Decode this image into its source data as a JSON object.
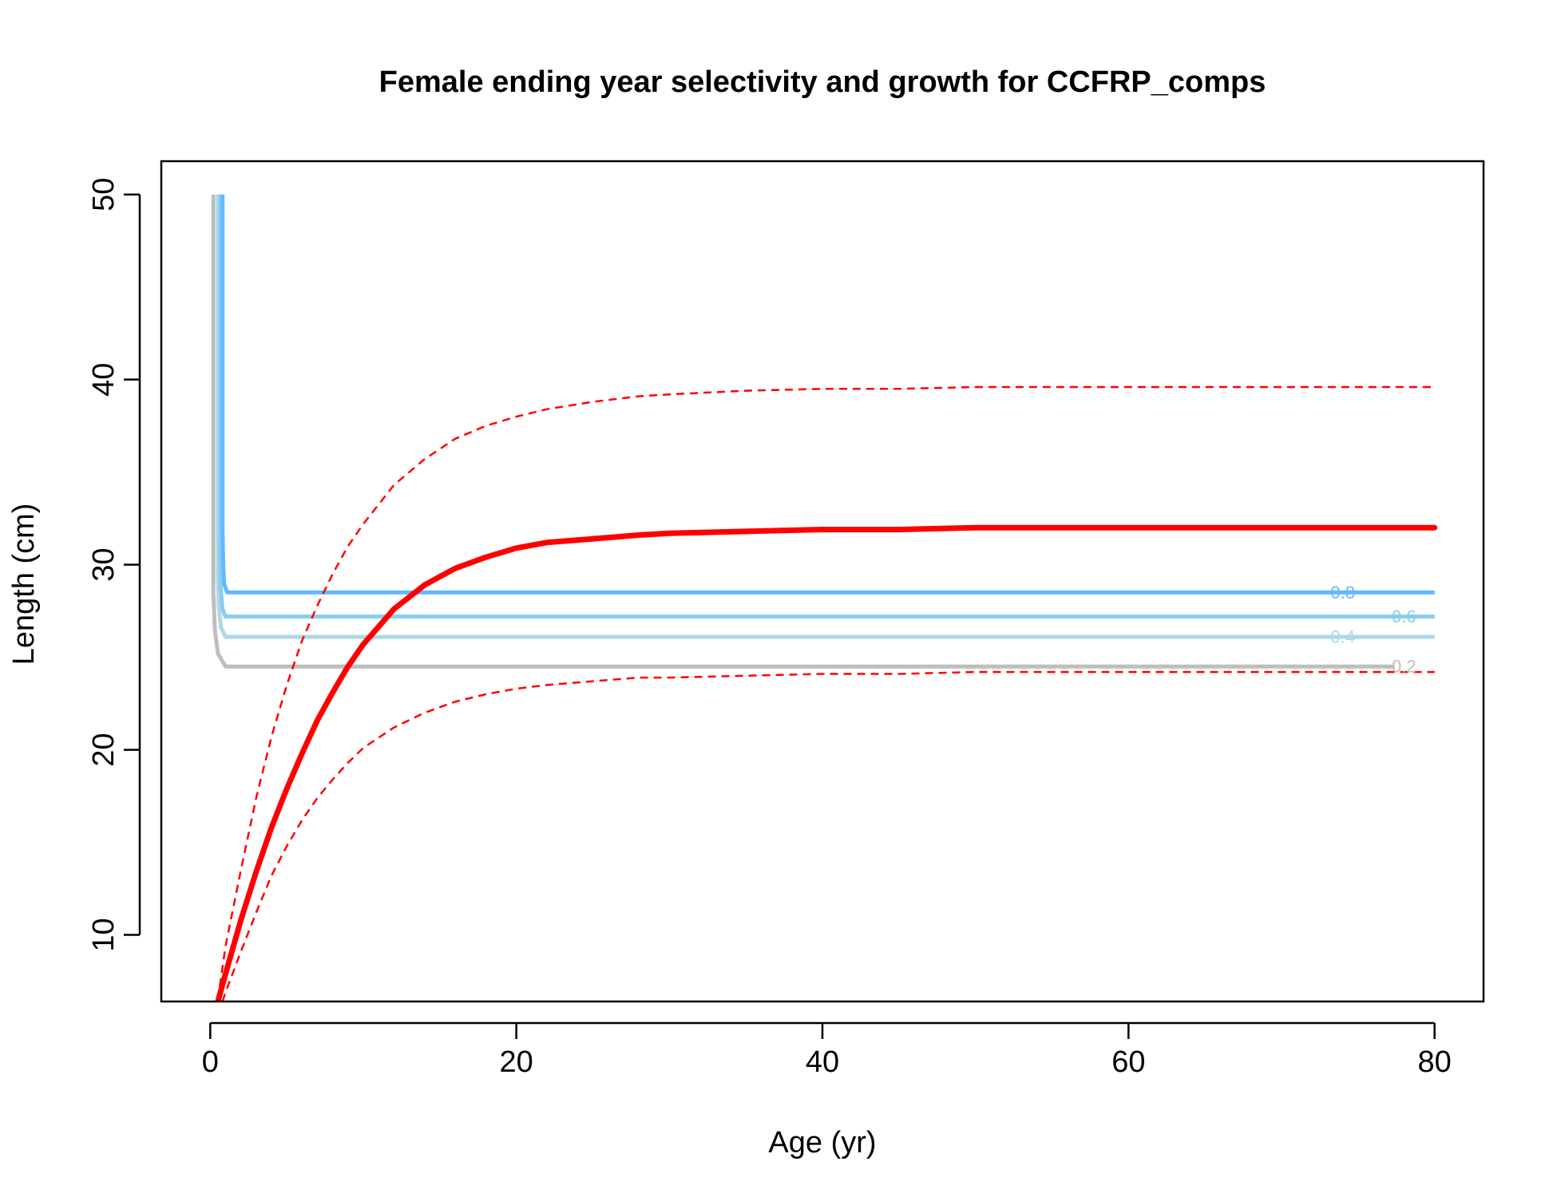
{
  "chart_data": {
    "type": "line",
    "title": "Female ending year selectivity and growth for CCFRP_comps",
    "xlabel": "Age (yr)",
    "ylabel": "Length (cm)",
    "xlim": [
      -3.2,
      83.2
    ],
    "ylim": [
      6.4,
      51.8
    ],
    "xticks": [
      0,
      20,
      40,
      60,
      80
    ],
    "yticks": [
      10,
      20,
      30,
      40,
      50
    ],
    "grid": false,
    "colors": {
      "growth": "#ff0000",
      "sel_0.8": "#63b8ff",
      "sel_0.6": "#87ceeb",
      "sel_0.4": "#add8e6",
      "sel_0.2": "#bebebe"
    },
    "growth_mean": {
      "x": [
        0.5,
        1,
        2,
        3,
        4,
        5,
        6,
        7,
        8,
        9,
        10,
        12,
        14,
        16,
        18,
        20,
        22,
        25,
        28,
        30,
        35,
        40,
        45,
        50,
        60,
        70,
        80
      ],
      "y": [
        6.4,
        7.9,
        10.8,
        13.4,
        15.8,
        17.9,
        19.8,
        21.6,
        23.1,
        24.5,
        25.7,
        27.6,
        28.9,
        29.8,
        30.4,
        30.9,
        31.2,
        31.4,
        31.6,
        31.7,
        31.8,
        31.9,
        31.9,
        32.0,
        32.0,
        32.0,
        32.0
      ]
    },
    "growth_upper": {
      "x": [
        0.5,
        1,
        2,
        3,
        4,
        5,
        6,
        7,
        8,
        9,
        10,
        12,
        14,
        16,
        18,
        20,
        22,
        25,
        28,
        30,
        35,
        40,
        45,
        50,
        60,
        70,
        80
      ],
      "y": [
        6.5,
        9.4,
        13.5,
        17.4,
        20.7,
        23.5,
        25.9,
        27.8,
        29.5,
        31.0,
        32.2,
        34.3,
        35.7,
        36.8,
        37.5,
        38.0,
        38.4,
        38.8,
        39.1,
        39.2,
        39.4,
        39.5,
        39.5,
        39.6,
        39.6,
        39.6,
        39.6
      ]
    },
    "growth_lower": {
      "x": [
        0.8,
        1,
        2,
        3,
        4,
        5,
        6,
        7,
        8,
        9,
        10,
        12,
        14,
        16,
        18,
        20,
        22,
        25,
        28,
        30,
        35,
        40,
        45,
        50,
        60,
        70,
        80
      ],
      "y": [
        6.4,
        6.9,
        9.1,
        11.2,
        13.2,
        14.8,
        16.2,
        17.4,
        18.4,
        19.3,
        20.1,
        21.2,
        22.0,
        22.6,
        23.0,
        23.3,
        23.5,
        23.7,
        23.9,
        23.9,
        24.0,
        24.1,
        24.1,
        24.2,
        24.2,
        24.2,
        24.2
      ]
    },
    "selectivity_contours": [
      {
        "level": "0.8",
        "x": [
          0.8,
          0.8,
          0.85,
          0.9,
          1.1,
          73.4,
          74.6,
          80
        ],
        "y": [
          50,
          32,
          30,
          29,
          28.5,
          28.5,
          28.5,
          28.5
        ],
        "label_x": 74.0,
        "label_y": 28.5
      },
      {
        "level": "0.6",
        "x": [
          0.65,
          0.65,
          0.7,
          0.8,
          1.0,
          77.4,
          78.6,
          80
        ],
        "y": [
          50,
          30,
          28.5,
          27.6,
          27.2,
          27.2,
          27.2,
          27.2
        ],
        "label_x": 78.0,
        "label_y": 27.2
      },
      {
        "level": "0.4",
        "x": [
          0.5,
          0.5,
          0.55,
          0.7,
          1.0,
          73.4,
          74.6,
          80
        ],
        "y": [
          50,
          29.5,
          27.8,
          26.6,
          26.1,
          26.1,
          26.1,
          26.1
        ],
        "label_x": 74.0,
        "label_y": 26.1
      },
      {
        "level": "0.2",
        "x": [
          0.2,
          0.2,
          0.3,
          0.5,
          1.0,
          77.4
        ],
        "y": [
          50,
          28.5,
          26.5,
          25.2,
          24.5,
          24.5
        ],
        "label_x": 78.0,
        "label_y": 24.5
      }
    ]
  }
}
